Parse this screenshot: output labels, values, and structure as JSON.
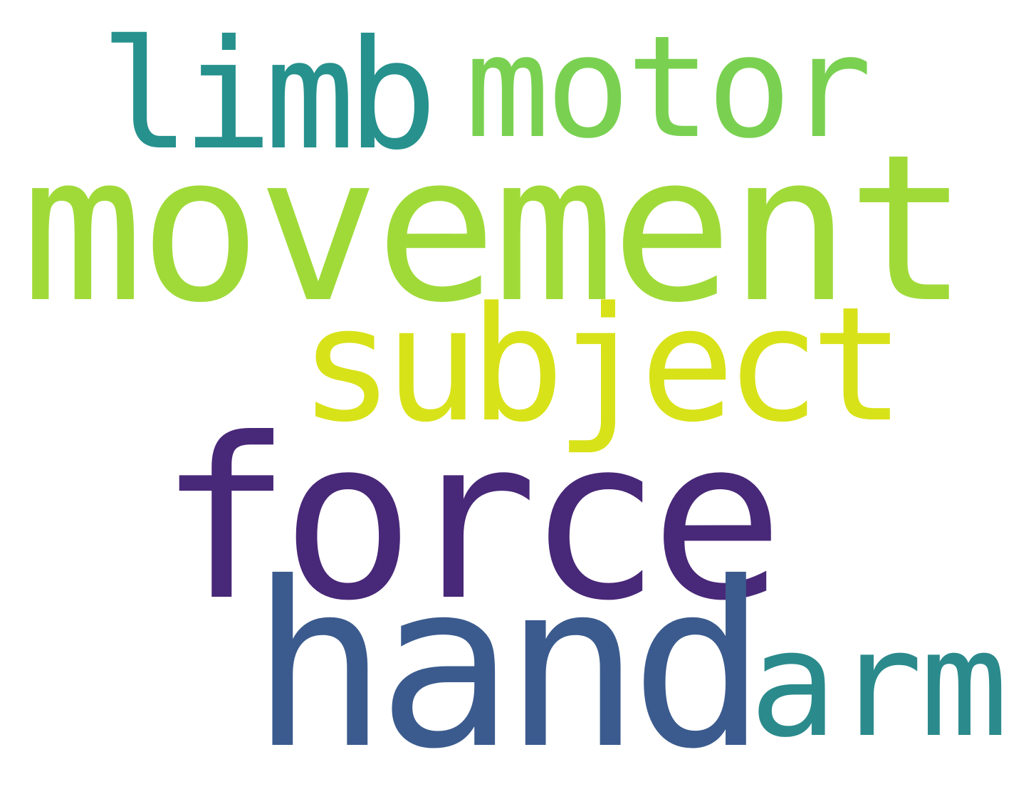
{
  "background": "#ffffff",
  "words": [
    {
      "text": "limb",
      "color": "#26918d"
    },
    {
      "text": "motor",
      "color": "#7ad151"
    },
    {
      "text": "movement",
      "color": "#a0da39"
    },
    {
      "text": "subject",
      "color": "#d8e219"
    },
    {
      "text": "force",
      "color": "#482878"
    },
    {
      "text": "hand",
      "color": "#3b5b8e"
    },
    {
      "text": "arm",
      "color": "#2b8a8c"
    }
  ]
}
